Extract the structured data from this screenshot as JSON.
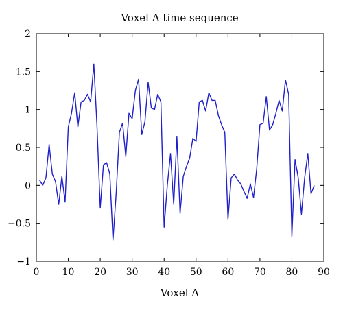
{
  "chart_data": {
    "type": "line",
    "title": "Voxel A time sequence",
    "xlabel": "Voxel A",
    "ylabel": "",
    "xlim": [
      0,
      90
    ],
    "ylim": [
      -1,
      2
    ],
    "xticks": [
      "0",
      "10",
      "20",
      "30",
      "40",
      "50",
      "60",
      "70",
      "80",
      "90"
    ],
    "yticks": [
      "−1",
      "−0.5",
      "0",
      "0.5",
      "1",
      "1.5",
      "2"
    ],
    "grid": false,
    "series": [
      {
        "name": "",
        "color": "#1f1fcc",
        "x": [
          1,
          2,
          3,
          4,
          5,
          6,
          7,
          8,
          9,
          10,
          11,
          12,
          13,
          14,
          15,
          16,
          17,
          18,
          19,
          20,
          21,
          22,
          23,
          24,
          25,
          26,
          27,
          28,
          29,
          30,
          31,
          32,
          33,
          34,
          35,
          36,
          37,
          38,
          39,
          40,
          41,
          42,
          43,
          44,
          45,
          46,
          47,
          48,
          49,
          50,
          51,
          52,
          53,
          54,
          55,
          56,
          57,
          58,
          59,
          60,
          61,
          62,
          63,
          64,
          65,
          66,
          67,
          68,
          69,
          70,
          71,
          72,
          73,
          74,
          75,
          76,
          77,
          78,
          79,
          80,
          81,
          82,
          83,
          84,
          85,
          86,
          87
        ],
        "y": [
          0.07,
          0.0,
          0.1,
          0.54,
          0.15,
          0.05,
          -0.25,
          0.12,
          -0.22,
          0.77,
          0.95,
          1.22,
          0.77,
          1.1,
          1.12,
          1.2,
          1.1,
          1.6,
          0.77,
          -0.3,
          0.27,
          0.3,
          0.15,
          -0.72,
          -0.1,
          0.7,
          0.82,
          0.38,
          0.95,
          0.88,
          1.25,
          1.4,
          0.67,
          0.84,
          1.36,
          1.02,
          1.0,
          1.2,
          1.1,
          -0.55,
          0.0,
          0.42,
          -0.25,
          0.64,
          -0.37,
          0.12,
          0.25,
          0.36,
          0.62,
          0.58,
          1.1,
          1.12,
          0.98,
          1.22,
          1.12,
          1.12,
          0.92,
          0.8,
          0.7,
          -0.45,
          0.1,
          0.15,
          0.07,
          0.02,
          -0.08,
          -0.17,
          0.02,
          -0.16,
          0.22,
          0.8,
          0.82,
          1.17,
          0.73,
          0.8,
          0.95,
          1.12,
          0.98,
          1.39,
          1.2,
          -0.67,
          0.34,
          0.1,
          -0.38,
          0.1,
          0.42,
          -0.11,
          0.0
        ]
      }
    ]
  }
}
